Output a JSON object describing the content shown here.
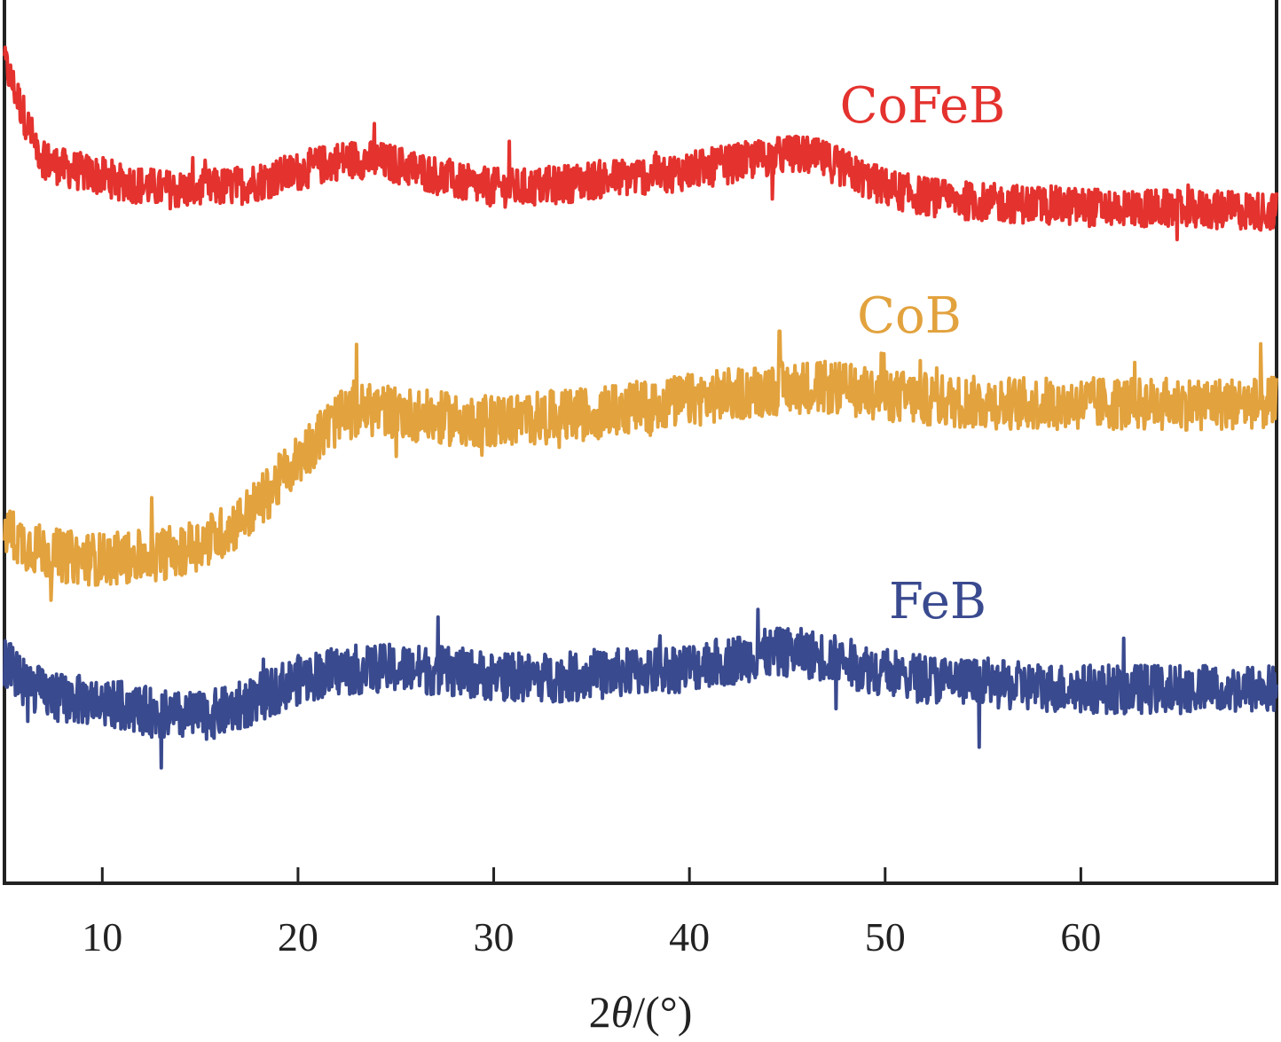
{
  "chart_data": {
    "type": "line",
    "title": "",
    "xlabel": "2θ/(°)",
    "xlabel_parts": {
      "prefix": "2",
      "symbol": "θ",
      "suffix": "/(°)"
    },
    "ylabel": "",
    "xlim": [
      5,
      70
    ],
    "x_ticks": [
      10,
      20,
      30,
      40,
      50,
      60
    ],
    "x_tick_labels": [
      "10",
      "20",
      "30",
      "40",
      "50",
      "60"
    ],
    "y_ticks_shown": false,
    "grid": false,
    "legend": "inline labels above each trace",
    "series": [
      {
        "name": "CoFeB",
        "color": "#e4322e",
        "x": [
          5,
          5.5,
          6,
          6.5,
          7,
          8,
          9,
          10,
          11,
          12,
          13,
          14,
          15,
          16,
          17,
          18,
          19,
          20,
          21,
          22,
          23,
          24,
          25,
          26,
          27,
          28,
          29,
          30,
          31,
          32,
          33,
          34,
          35,
          36,
          37,
          38,
          39,
          40,
          41,
          42,
          43,
          44,
          45,
          46,
          47,
          48,
          49,
          50,
          51,
          52,
          53,
          54,
          55,
          56,
          57,
          58,
          59,
          60,
          61,
          62,
          63,
          64,
          65,
          66,
          67,
          68,
          69,
          70
        ],
        "values": [
          93,
          90,
          87,
          84,
          82,
          81,
          80.5,
          80,
          79.5,
          79,
          78.6,
          78.5,
          78.6,
          78.8,
          79,
          79.5,
          80,
          80.6,
          81.2,
          81.8,
          82,
          81.8,
          81.4,
          80.8,
          80.2,
          79.5,
          79,
          78.8,
          78.7,
          78.8,
          79,
          79.3,
          79.6,
          79.8,
          80,
          80.2,
          80.4,
          80.7,
          81,
          81.4,
          81.8,
          82.2,
          82.5,
          82.4,
          81.8,
          80.8,
          79.7,
          78.8,
          78.2,
          77.8,
          77.5,
          77.3,
          77.1,
          77,
          76.9,
          76.8,
          76.7,
          76.6,
          76.5,
          76.5,
          76.4,
          76.4,
          76.3,
          76.3,
          76.2,
          76.2,
          76.1,
          76.1
        ],
        "spikes": [
          {
            "x": 23.9,
            "value": 86
          },
          {
            "x": 30.8,
            "value": 84
          },
          {
            "x": 45.1,
            "value": 84.5
          }
        ]
      },
      {
        "name": "CoB",
        "color": "#e2a23d",
        "x": [
          5,
          6,
          7,
          8,
          9,
          10,
          11,
          12,
          13,
          14,
          15,
          16,
          17,
          18,
          19,
          20,
          21,
          22,
          23,
          24,
          25,
          26,
          27,
          28,
          29,
          30,
          31,
          32,
          33,
          34,
          35,
          36,
          37,
          38,
          39,
          40,
          41,
          42,
          43,
          44,
          45,
          46,
          47,
          48,
          49,
          50,
          51,
          52,
          53,
          54,
          55,
          56,
          57,
          58,
          59,
          60,
          61,
          62,
          63,
          64,
          65,
          66,
          67,
          68,
          69,
          70
        ],
        "values": [
          40,
          38.5,
          37.5,
          37,
          36.8,
          36.7,
          36.8,
          37,
          37.3,
          37.8,
          38.5,
          39.5,
          41,
          43,
          45.5,
          48,
          50.5,
          52.5,
          53.5,
          53.6,
          53.4,
          53,
          52.7,
          52.5,
          52.4,
          52.4,
          52.5,
          52.6,
          52.8,
          53,
          53.2,
          53.5,
          53.8,
          54.1,
          54.4,
          54.7,
          55,
          55.3,
          55.6,
          55.9,
          56.1,
          56.2,
          56.1,
          55.9,
          55.6,
          55.3,
          55,
          54.8,
          54.6,
          54.5,
          54.4,
          54.4,
          54.3,
          54.3,
          54.3,
          54.3,
          54.3,
          54.3,
          54.3,
          54.3,
          54.3,
          54.3,
          54.3,
          54.3,
          54.3,
          54.3
        ],
        "spikes": [
          {
            "x": 23,
            "value": 61
          },
          {
            "x": 44.6,
            "value": 62.5
          },
          {
            "x": 49.8,
            "value": 60
          }
        ]
      },
      {
        "name": "FeB",
        "color": "#3a4a8f",
        "x": [
          5,
          5.5,
          6,
          7,
          8,
          9,
          10,
          11,
          12,
          13,
          14,
          15,
          16,
          17,
          18,
          19,
          20,
          21,
          22,
          23,
          24,
          25,
          26,
          27,
          28,
          29,
          30,
          31,
          32,
          33,
          34,
          35,
          36,
          37,
          38,
          39,
          40,
          41,
          42,
          43,
          44,
          45,
          46,
          47,
          48,
          49,
          50,
          51,
          52,
          53,
          54,
          55,
          56,
          57,
          58,
          59,
          60,
          61,
          62,
          63,
          64,
          65,
          66,
          67,
          68,
          69,
          70
        ],
        "values": [
          25,
          24,
          22.8,
          21.5,
          21,
          20.7,
          20.5,
          20.1,
          19.6,
          19.1,
          18.9,
          18.9,
          19.3,
          20,
          21,
          22.1,
          23,
          23.6,
          24,
          24.2,
          24.3,
          24.3,
          24.2,
          24.1,
          23.9,
          23.7,
          23.5,
          23.4,
          23.3,
          23.3,
          23.4,
          23.5,
          23.7,
          23.9,
          24.1,
          24.3,
          24.5,
          24.8,
          25.2,
          25.6,
          26,
          26.2,
          26,
          25.6,
          25,
          24.4,
          23.9,
          23.5,
          23.2,
          23,
          22.8,
          22.6,
          22.4,
          22.3,
          22.2,
          22.1,
          22,
          22,
          22,
          22,
          22,
          22,
          22,
          22,
          22,
          22,
          22
        ],
        "spikes": [
          {
            "x": 43.5,
            "value": 31
          },
          {
            "x": 38.5,
            "value": 28
          }
        ]
      }
    ],
    "annotations": [
      {
        "text": "CoFeB",
        "series": "CoFeB"
      },
      {
        "text": "CoB",
        "series": "CoB"
      },
      {
        "text": "FeB",
        "series": "FeB"
      }
    ]
  }
}
